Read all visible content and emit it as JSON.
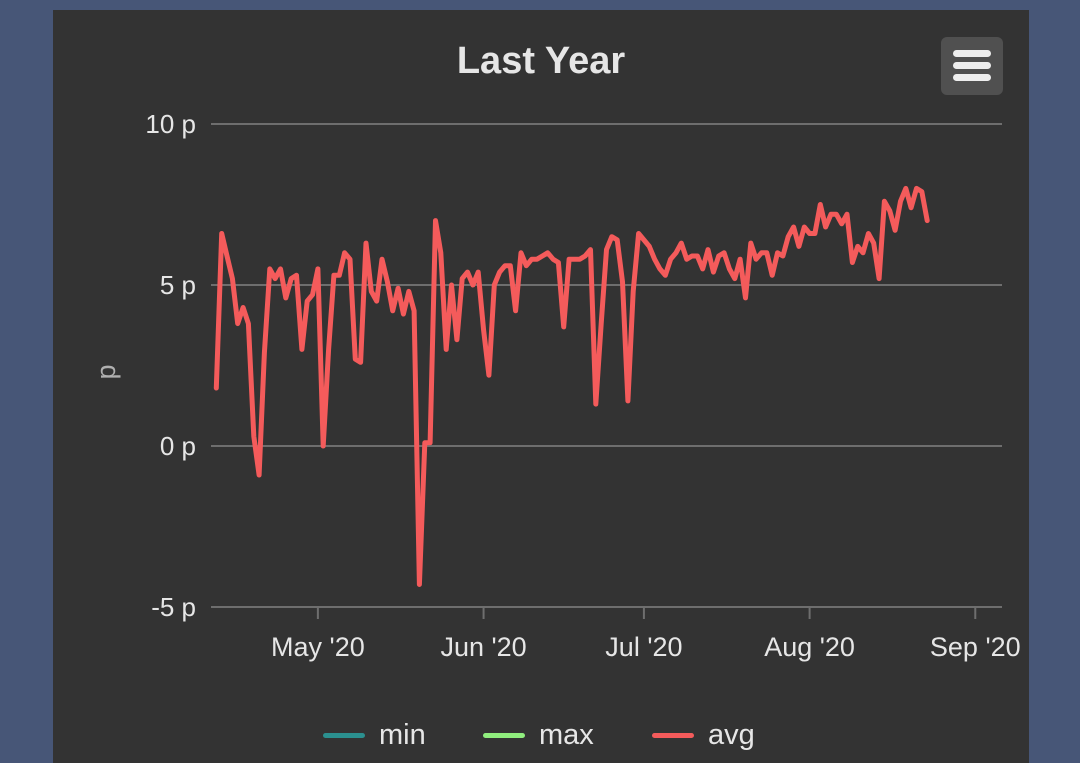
{
  "chart_data": {
    "type": "line",
    "title": "Last Year",
    "xlabel": "",
    "ylabel": "p",
    "ylim": [
      -5,
      10
    ],
    "xlim": [
      "2020-04-11",
      "2020-09-06"
    ],
    "y_ticks": [
      {
        "value": 10,
        "label": "10 p"
      },
      {
        "value": 5,
        "label": "5 p"
      },
      {
        "value": 0,
        "label": "0 p"
      },
      {
        "value": -5,
        "label": "-5 p"
      }
    ],
    "x_ticks": [
      {
        "date": "2020-05-01",
        "label": "May '20"
      },
      {
        "date": "2020-06-01",
        "label": "Jun '20"
      },
      {
        "date": "2020-07-01",
        "label": "Jul '20"
      },
      {
        "date": "2020-08-01",
        "label": "Aug '20"
      },
      {
        "date": "2020-09-01",
        "label": "Sep '20"
      }
    ],
    "grid": true,
    "legend_position": "bottom",
    "series": [
      {
        "name": "min",
        "color": "#2b908f",
        "points": []
      },
      {
        "name": "max",
        "color": "#90ee7e",
        "points": []
      },
      {
        "name": "avg",
        "color": "#f45b5b",
        "points": [
          [
            "2020-04-12",
            1.8
          ],
          [
            "2020-04-13",
            6.6
          ],
          [
            "2020-04-14",
            5.9
          ],
          [
            "2020-04-15",
            5.2
          ],
          [
            "2020-04-16",
            3.8
          ],
          [
            "2020-04-17",
            4.3
          ],
          [
            "2020-04-18",
            3.8
          ],
          [
            "2020-04-19",
            0.3
          ],
          [
            "2020-04-20",
            -0.9
          ],
          [
            "2020-04-21",
            2.9
          ],
          [
            "2020-04-22",
            5.5
          ],
          [
            "2020-04-23",
            5.2
          ],
          [
            "2020-04-24",
            5.5
          ],
          [
            "2020-04-25",
            4.6
          ],
          [
            "2020-04-26",
            5.2
          ],
          [
            "2020-04-27",
            5.3
          ],
          [
            "2020-04-28",
            3.0
          ],
          [
            "2020-04-29",
            4.5
          ],
          [
            "2020-04-30",
            4.7
          ],
          [
            "2020-05-01",
            5.5
          ],
          [
            "2020-05-02",
            0.0
          ],
          [
            "2020-05-03",
            3.0
          ],
          [
            "2020-05-04",
            5.3
          ],
          [
            "2020-05-05",
            5.3
          ],
          [
            "2020-05-06",
            6.0
          ],
          [
            "2020-05-07",
            5.8
          ],
          [
            "2020-05-08",
            2.7
          ],
          [
            "2020-05-09",
            2.6
          ],
          [
            "2020-05-10",
            6.3
          ],
          [
            "2020-05-11",
            4.8
          ],
          [
            "2020-05-12",
            4.5
          ],
          [
            "2020-05-13",
            5.8
          ],
          [
            "2020-05-14",
            5.1
          ],
          [
            "2020-05-15",
            4.2
          ],
          [
            "2020-05-16",
            4.9
          ],
          [
            "2020-05-17",
            4.1
          ],
          [
            "2020-05-18",
            4.8
          ],
          [
            "2020-05-19",
            4.2
          ],
          [
            "2020-05-20",
            -4.3
          ],
          [
            "2020-05-21",
            0.1
          ],
          [
            "2020-05-22",
            0.1
          ],
          [
            "2020-05-23",
            7.0
          ],
          [
            "2020-05-24",
            6.0
          ],
          [
            "2020-05-25",
            3.0
          ],
          [
            "2020-05-26",
            5.0
          ],
          [
            "2020-05-27",
            3.3
          ],
          [
            "2020-05-28",
            5.2
          ],
          [
            "2020-05-29",
            5.4
          ],
          [
            "2020-05-30",
            5.0
          ],
          [
            "2020-05-31",
            5.4
          ],
          [
            "2020-06-01",
            3.6
          ],
          [
            "2020-06-02",
            2.2
          ],
          [
            "2020-06-03",
            5.0
          ],
          [
            "2020-06-04",
            5.4
          ],
          [
            "2020-06-05",
            5.6
          ],
          [
            "2020-06-06",
            5.6
          ],
          [
            "2020-06-07",
            4.2
          ],
          [
            "2020-06-08",
            6.0
          ],
          [
            "2020-06-09",
            5.6
          ],
          [
            "2020-06-10",
            5.8
          ],
          [
            "2020-06-11",
            5.8
          ],
          [
            "2020-06-12",
            5.9
          ],
          [
            "2020-06-13",
            6.0
          ],
          [
            "2020-06-14",
            5.8
          ],
          [
            "2020-06-15",
            5.7
          ],
          [
            "2020-06-16",
            3.7
          ],
          [
            "2020-06-17",
            5.8
          ],
          [
            "2020-06-18",
            5.8
          ],
          [
            "2020-06-19",
            5.8
          ],
          [
            "2020-06-20",
            5.9
          ],
          [
            "2020-06-21",
            6.1
          ],
          [
            "2020-06-22",
            1.3
          ],
          [
            "2020-06-23",
            3.8
          ],
          [
            "2020-06-24",
            6.1
          ],
          [
            "2020-06-25",
            6.5
          ],
          [
            "2020-06-26",
            6.4
          ],
          [
            "2020-06-27",
            5.1
          ],
          [
            "2020-06-28",
            1.4
          ],
          [
            "2020-06-29",
            4.8
          ],
          [
            "2020-06-30",
            6.6
          ],
          [
            "2020-07-01",
            6.4
          ],
          [
            "2020-07-02",
            6.2
          ],
          [
            "2020-07-03",
            5.8
          ],
          [
            "2020-07-04",
            5.5
          ],
          [
            "2020-07-05",
            5.3
          ],
          [
            "2020-07-06",
            5.8
          ],
          [
            "2020-07-07",
            6.0
          ],
          [
            "2020-07-08",
            6.3
          ],
          [
            "2020-07-09",
            5.8
          ],
          [
            "2020-07-10",
            5.9
          ],
          [
            "2020-07-11",
            5.9
          ],
          [
            "2020-07-12",
            5.5
          ],
          [
            "2020-07-13",
            6.1
          ],
          [
            "2020-07-14",
            5.4
          ],
          [
            "2020-07-15",
            5.9
          ],
          [
            "2020-07-16",
            6.0
          ],
          [
            "2020-07-17",
            5.5
          ],
          [
            "2020-07-18",
            5.2
          ],
          [
            "2020-07-19",
            5.8
          ],
          [
            "2020-07-20",
            4.6
          ],
          [
            "2020-07-21",
            6.3
          ],
          [
            "2020-07-22",
            5.8
          ],
          [
            "2020-07-23",
            6.0
          ],
          [
            "2020-07-24",
            6.0
          ],
          [
            "2020-07-25",
            5.3
          ],
          [
            "2020-07-26",
            6.0
          ],
          [
            "2020-07-27",
            5.9
          ],
          [
            "2020-07-28",
            6.5
          ],
          [
            "2020-07-29",
            6.8
          ],
          [
            "2020-07-30",
            6.2
          ],
          [
            "2020-07-31",
            6.8
          ],
          [
            "2020-08-01",
            6.6
          ],
          [
            "2020-08-02",
            6.6
          ],
          [
            "2020-08-03",
            7.5
          ],
          [
            "2020-08-04",
            6.8
          ],
          [
            "2020-08-05",
            7.2
          ],
          [
            "2020-08-06",
            7.2
          ],
          [
            "2020-08-07",
            6.9
          ],
          [
            "2020-08-08",
            7.2
          ],
          [
            "2020-08-09",
            5.7
          ],
          [
            "2020-08-10",
            6.2
          ],
          [
            "2020-08-11",
            6.0
          ],
          [
            "2020-08-12",
            6.6
          ],
          [
            "2020-08-13",
            6.3
          ],
          [
            "2020-08-14",
            5.2
          ],
          [
            "2020-08-15",
            7.6
          ],
          [
            "2020-08-16",
            7.3
          ],
          [
            "2020-08-17",
            6.7
          ],
          [
            "2020-08-18",
            7.6
          ],
          [
            "2020-08-19",
            8.0
          ],
          [
            "2020-08-20",
            7.4
          ],
          [
            "2020-08-21",
            8.0
          ],
          [
            "2020-08-22",
            7.9
          ],
          [
            "2020-08-23",
            7.0
          ]
        ]
      }
    ]
  },
  "menu": {
    "label": "Chart context menu"
  }
}
